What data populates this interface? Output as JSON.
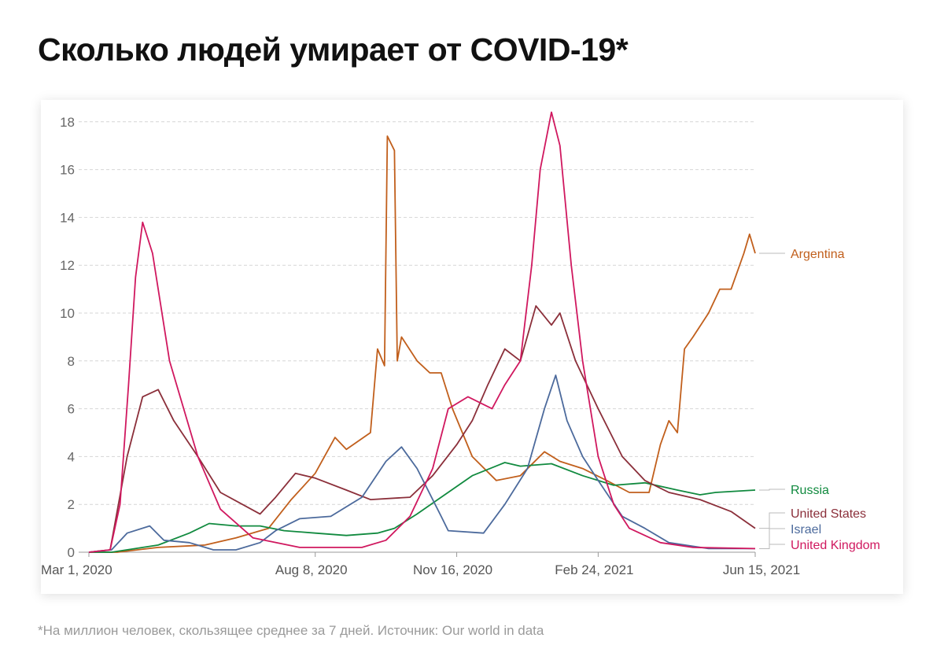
{
  "title": "Сколько людей умирает от COVID-19*",
  "footnote": "*На миллион человек, скользящее среднее за 7 дней. Источник: Our world in data",
  "chart_data": {
    "type": "line",
    "title": "Сколько людей умирает от COVID-19*",
    "xlabel": "",
    "ylabel": "",
    "x_unit": "days since Mar 1, 2020",
    "xlim": [
      0,
      471
    ],
    "ylim": [
      0,
      18.5
    ],
    "grid": true,
    "y_ticks": [
      0,
      2,
      4,
      6,
      8,
      10,
      12,
      14,
      16,
      18
    ],
    "x_ticks": [
      {
        "day": 0,
        "label": "Mar 1, 2020"
      },
      {
        "day": 160,
        "label": "Aug 8, 2020"
      },
      {
        "day": 260,
        "label": "Nov 16, 2020"
      },
      {
        "day": 360,
        "label": "Feb 24, 2021"
      },
      {
        "day": 471,
        "label": "Jun 15, 2021"
      }
    ],
    "legend": "right, end-of-line labels",
    "series": [
      {
        "name": "Argentina",
        "color": "#c15f1c",
        "points": [
          [
            0,
            0
          ],
          [
            20,
            0
          ],
          [
            49,
            0.2
          ],
          [
            82,
            0.3
          ],
          [
            104,
            0.6
          ],
          [
            127,
            1.0
          ],
          [
            143,
            2.2
          ],
          [
            160,
            3.3
          ],
          [
            174,
            4.8
          ],
          [
            182,
            4.3
          ],
          [
            199,
            5.0
          ],
          [
            204,
            8.5
          ],
          [
            209,
            7.8
          ],
          [
            211,
            17.4
          ],
          [
            216,
            16.8
          ],
          [
            218,
            8.0
          ],
          [
            221,
            9.0
          ],
          [
            232,
            8.0
          ],
          [
            241,
            7.5
          ],
          [
            249,
            7.5
          ],
          [
            257,
            6.0
          ],
          [
            271,
            4.0
          ],
          [
            288,
            3.0
          ],
          [
            305,
            3.2
          ],
          [
            322,
            4.2
          ],
          [
            333,
            3.8
          ],
          [
            349,
            3.5
          ],
          [
            366,
            3.0
          ],
          [
            382,
            2.5
          ],
          [
            396,
            2.5
          ],
          [
            404,
            4.5
          ],
          [
            410,
            5.5
          ],
          [
            416,
            5.0
          ],
          [
            421,
            8.5
          ],
          [
            427,
            9.0
          ],
          [
            438,
            10.0
          ],
          [
            446,
            11.0
          ],
          [
            454,
            11.0
          ],
          [
            463,
            12.5
          ],
          [
            467,
            13.3
          ],
          [
            471,
            12.5
          ]
        ]
      },
      {
        "name": "Russia",
        "color": "#118a3f",
        "points": [
          [
            0,
            0
          ],
          [
            16,
            0
          ],
          [
            49,
            0.3
          ],
          [
            71,
            0.8
          ],
          [
            85,
            1.2
          ],
          [
            104,
            1.1
          ],
          [
            121,
            1.1
          ],
          [
            138,
            0.9
          ],
          [
            160,
            0.8
          ],
          [
            182,
            0.7
          ],
          [
            204,
            0.8
          ],
          [
            216,
            1.0
          ],
          [
            232,
            1.6
          ],
          [
            249,
            2.3
          ],
          [
            271,
            3.2
          ],
          [
            294,
            3.75
          ],
          [
            305,
            3.6
          ],
          [
            327,
            3.7
          ],
          [
            349,
            3.2
          ],
          [
            371,
            2.8
          ],
          [
            393,
            2.9
          ],
          [
            416,
            2.6
          ],
          [
            432,
            2.4
          ],
          [
            443,
            2.5
          ],
          [
            471,
            2.6
          ]
        ]
      },
      {
        "name": "United States",
        "color": "#8b2f3a",
        "points": [
          [
            0,
            0
          ],
          [
            15,
            0.1
          ],
          [
            27,
            4.0
          ],
          [
            38,
            6.5
          ],
          [
            49,
            6.8
          ],
          [
            60,
            5.5
          ],
          [
            77,
            4.0
          ],
          [
            93,
            2.5
          ],
          [
            121,
            1.6
          ],
          [
            132,
            2.3
          ],
          [
            146,
            3.3
          ],
          [
            160,
            3.1
          ],
          [
            182,
            2.6
          ],
          [
            199,
            2.2
          ],
          [
            227,
            2.3
          ],
          [
            243,
            3.2
          ],
          [
            260,
            4.5
          ],
          [
            271,
            5.5
          ],
          [
            282,
            7.0
          ],
          [
            294,
            8.5
          ],
          [
            305,
            8.0
          ],
          [
            316,
            10.3
          ],
          [
            327,
            9.5
          ],
          [
            333,
            10.0
          ],
          [
            344,
            8.0
          ],
          [
            360,
            6.0
          ],
          [
            377,
            4.0
          ],
          [
            393,
            3.0
          ],
          [
            410,
            2.5
          ],
          [
            432,
            2.2
          ],
          [
            454,
            1.7
          ],
          [
            471,
            1.0
          ]
        ]
      },
      {
        "name": "Israel",
        "color": "#4c6a9c",
        "points": [
          [
            0,
            0
          ],
          [
            16,
            0.1
          ],
          [
            27,
            0.8
          ],
          [
            43,
            1.1
          ],
          [
            53,
            0.5
          ],
          [
            71,
            0.4
          ],
          [
            88,
            0.1
          ],
          [
            104,
            0.1
          ],
          [
            121,
            0.4
          ],
          [
            132,
            0.9
          ],
          [
            149,
            1.4
          ],
          [
            171,
            1.5
          ],
          [
            193,
            2.3
          ],
          [
            210,
            3.8
          ],
          [
            221,
            4.4
          ],
          [
            232,
            3.5
          ],
          [
            249,
            1.5
          ],
          [
            254,
            0.9
          ],
          [
            279,
            0.8
          ],
          [
            294,
            2.0
          ],
          [
            310,
            3.5
          ],
          [
            322,
            6.0
          ],
          [
            330,
            7.4
          ],
          [
            338,
            5.5
          ],
          [
            349,
            4.0
          ],
          [
            360,
            3.0
          ],
          [
            377,
            1.5
          ],
          [
            393,
            1.0
          ],
          [
            410,
            0.4
          ],
          [
            438,
            0.15
          ],
          [
            471,
            0.15
          ]
        ]
      },
      {
        "name": "United Kingdom",
        "color": "#d0185f",
        "points": [
          [
            0,
            0
          ],
          [
            15,
            0.1
          ],
          [
            22,
            2.0
          ],
          [
            28,
            7.0
          ],
          [
            33,
            11.5
          ],
          [
            38,
            13.8
          ],
          [
            45,
            12.5
          ],
          [
            57,
            8.0
          ],
          [
            77,
            4.0
          ],
          [
            93,
            1.8
          ],
          [
            116,
            0.6
          ],
          [
            149,
            0.2
          ],
          [
            193,
            0.2
          ],
          [
            210,
            0.5
          ],
          [
            227,
            1.5
          ],
          [
            243,
            3.5
          ],
          [
            254,
            6.0
          ],
          [
            268,
            6.5
          ],
          [
            285,
            6.0
          ],
          [
            294,
            7.0
          ],
          [
            305,
            8.0
          ],
          [
            313,
            12.0
          ],
          [
            319,
            16.0
          ],
          [
            327,
            18.4
          ],
          [
            333,
            17.0
          ],
          [
            341,
            12.0
          ],
          [
            349,
            8.0
          ],
          [
            360,
            4.0
          ],
          [
            371,
            2.0
          ],
          [
            382,
            1.0
          ],
          [
            404,
            0.4
          ],
          [
            427,
            0.2
          ],
          [
            471,
            0.15
          ]
        ]
      }
    ]
  }
}
